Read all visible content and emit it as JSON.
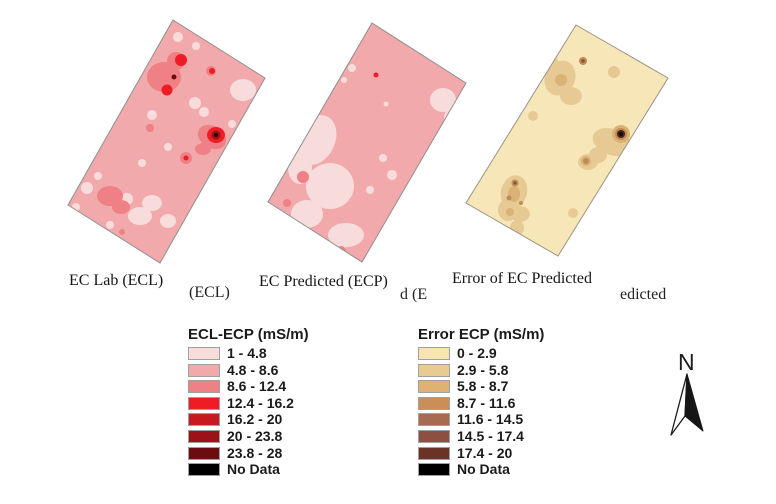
{
  "maps": [
    {
      "label": "EC Lab (ECL)",
      "fragment": "(ECL)",
      "base_color": "#f2a9ab"
    },
    {
      "label": "EC Predicted (ECP)",
      "fragment": "d (E",
      "base_color": "#f2a9ab"
    },
    {
      "label": "Error of EC Predicted",
      "fragment": "edicted",
      "base_color": "#f7e6b8"
    }
  ],
  "legends": [
    {
      "title": "ECL-ECP (mS/m)",
      "items": [
        {
          "label": "1 - 4.8",
          "color": "#f7dcdb"
        },
        {
          "label": "4.8 - 8.6",
          "color": "#f2a9ab"
        },
        {
          "label": "8.6 - 12.4",
          "color": "#ef8085"
        },
        {
          "label": "12.4 - 16.2",
          "color": "#ee1c25"
        },
        {
          "label": "16.2 - 20",
          "color": "#c41a20"
        },
        {
          "label": "20 - 23.8",
          "color": "#9b1319"
        },
        {
          "label": "23.8 - 28",
          "color": "#6b0d10"
        },
        {
          "label": "No Data",
          "color": "#000000"
        }
      ]
    },
    {
      "title": "Error ECP (mS/m)",
      "items": [
        {
          "label": "0 - 2.9",
          "color": "#f6e4b3"
        },
        {
          "label": "2.9 - 5.8",
          "color": "#e9cb90"
        },
        {
          "label": "5.8 - 8.7",
          "color": "#ddb272"
        },
        {
          "label": "8.7 - 11.6",
          "color": "#c98f57"
        },
        {
          "label": "11.6 - 14.5",
          "color": "#a96b50"
        },
        {
          "label": "14.5 - 17.4",
          "color": "#8d4f41"
        },
        {
          "label": "17.4 - 20",
          "color": "#6b3328"
        },
        {
          "label": "No Data",
          "color": "#000000"
        }
      ]
    }
  ],
  "north_arrow": {
    "label": "N"
  }
}
